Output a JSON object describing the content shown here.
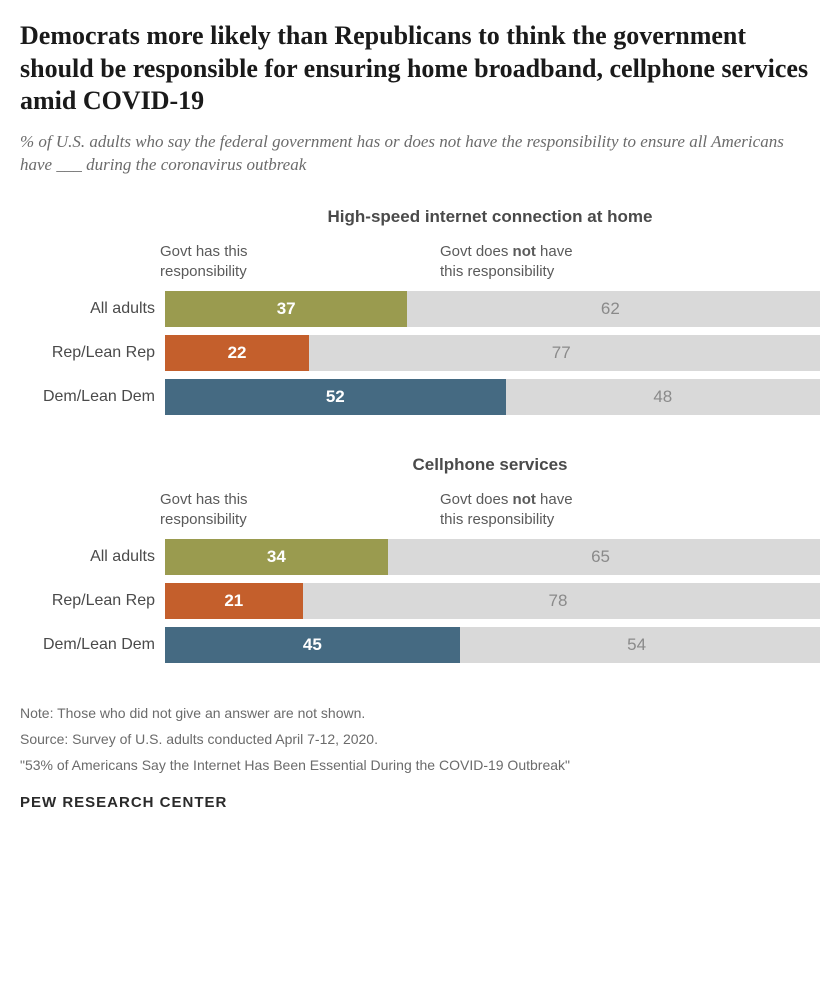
{
  "title": "Democrats more likely than Republicans to think the government should be responsible for ensuring home broadband, cellphone services amid COVID-19",
  "subtitle": "% of U.S. adults who say the federal government has or does not have the responsibility to ensure all Americans have ___ during the coronavirus outbreak",
  "header_yes_line1": "Govt has this",
  "header_yes_line2": "responsibility",
  "header_no_prefix": "Govt does ",
  "header_no_bold": "not",
  "header_no_suffix": " have",
  "header_no_line2": "this responsibility",
  "panels": [
    {
      "title": "High-speed internet connection at home",
      "rows": [
        {
          "label": "All adults",
          "yes": 37,
          "no": 62,
          "yes_color": "#9a9b4f",
          "no_color": "#d9d9d9"
        },
        {
          "label": "Rep/Lean Rep",
          "yes": 22,
          "no": 77,
          "yes_color": "#c45f2c",
          "no_color": "#d9d9d9"
        },
        {
          "label": "Dem/Lean Dem",
          "yes": 52,
          "no": 48,
          "yes_color": "#456a82",
          "no_color": "#d9d9d9"
        }
      ]
    },
    {
      "title": "Cellphone services",
      "rows": [
        {
          "label": "All adults",
          "yes": 34,
          "no": 65,
          "yes_color": "#9a9b4f",
          "no_color": "#d9d9d9"
        },
        {
          "label": "Rep/Lean Rep",
          "yes": 21,
          "no": 78,
          "yes_color": "#c45f2c",
          "no_color": "#d9d9d9"
        },
        {
          "label": "Dem/Lean Dem",
          "yes": 45,
          "no": 54,
          "yes_color": "#456a82",
          "no_color": "#d9d9d9"
        }
      ]
    }
  ],
  "notes": [
    "Note: Those who did not give an answer are not shown.",
    "Source: Survey of U.S. adults conducted April 7-12, 2020.",
    "\"53% of Americans Say the Internet Has Been Essential During the COVID-19 Outbreak\""
  ],
  "footer": "PEW RESEARCH CENTER",
  "bar_total_width": 620,
  "bar_scale": 100
}
